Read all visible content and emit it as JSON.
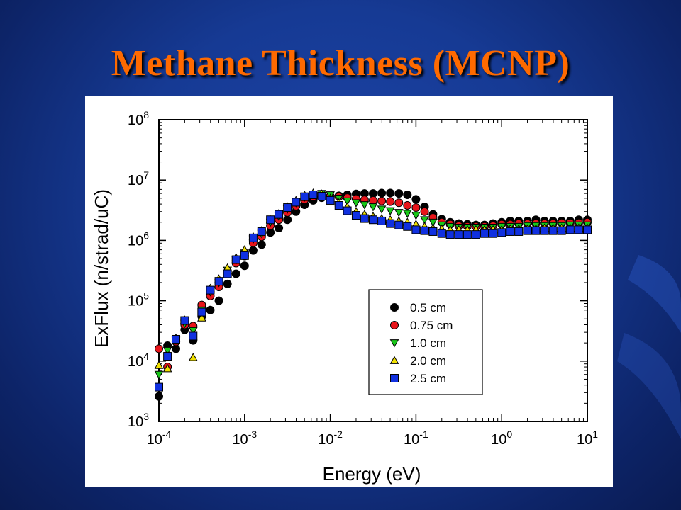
{
  "slide": {
    "title": "Methane Thickness (MCNP)"
  },
  "colors": {
    "title": "#ff6a00",
    "background": "#163a94"
  },
  "chart_data": {
    "type": "scatter",
    "title": "",
    "xlabel": "Energy (eV)",
    "ylabel": "ExFlux (n/strad/uC)",
    "x_scale": "log",
    "y_scale": "log",
    "xlim": [
      0.0001,
      10
    ],
    "ylim": [
      1000,
      100000000
    ],
    "grid": false,
    "legend_position": "lower-right",
    "x_ticks": [
      {
        "value": 0.0001,
        "base": "10",
        "exp": "-4"
      },
      {
        "value": 0.001,
        "base": "10",
        "exp": "-3"
      },
      {
        "value": 0.01,
        "base": "10",
        "exp": "-2"
      },
      {
        "value": 0.1,
        "base": "10",
        "exp": "-1"
      },
      {
        "value": 1,
        "base": "10",
        "exp": "0"
      },
      {
        "value": 10,
        "base": "10",
        "exp": "1"
      }
    ],
    "y_ticks": [
      {
        "value": 1000,
        "base": "10",
        "exp": "3"
      },
      {
        "value": 10000,
        "base": "10",
        "exp": "4"
      },
      {
        "value": 100000,
        "base": "10",
        "exp": "5"
      },
      {
        "value": 1000000,
        "base": "10",
        "exp": "6"
      },
      {
        "value": 10000000,
        "base": "10",
        "exp": "7"
      },
      {
        "value": 100000000,
        "base": "10",
        "exp": "8"
      }
    ],
    "x": [
      0.0001,
      0.000126,
      0.000158,
      0.0002,
      0.000251,
      0.000316,
      0.000398,
      0.000501,
      0.000631,
      0.000794,
      0.001,
      0.00126,
      0.00158,
      0.002,
      0.00251,
      0.00316,
      0.00398,
      0.00501,
      0.00631,
      0.00794,
      0.01,
      0.0126,
      0.0158,
      0.02,
      0.0251,
      0.0316,
      0.0398,
      0.0501,
      0.0631,
      0.0794,
      0.1,
      0.126,
      0.158,
      0.2,
      0.251,
      0.316,
      0.398,
      0.501,
      0.631,
      0.794,
      1,
      1.26,
      1.58,
      2,
      2.51,
      3.16,
      3.98,
      5.01,
      6.31,
      7.94,
      10
    ],
    "series": [
      {
        "name": "0.5 cm",
        "marker": "circle",
        "color": "#000000",
        "values": [
          2600,
          18000,
          16000,
          33000,
          22000,
          55000,
          70000,
          100000,
          190000,
          280000,
          380000,
          680000,
          850000,
          1350000,
          1600000,
          2200000,
          3000000,
          3900000,
          4600000,
          5100000,
          5400000,
          5500000,
          5700000,
          5900000,
          6000000,
          6000000,
          6100000,
          6100000,
          6000000,
          5700000,
          4800000,
          3600000,
          2700000,
          2250000,
          2000000,
          1900000,
          1850000,
          1800000,
          1800000,
          1900000,
          2000000,
          2100000,
          2100000,
          2100000,
          2200000,
          2100000,
          2100000,
          2100000,
          2100000,
          2200000,
          2200000
        ]
      },
      {
        "name": "0.75 cm",
        "marker": "circle",
        "color": "#e8141a",
        "values": [
          16000,
          8000,
          21000,
          40000,
          38000,
          85000,
          120000,
          170000,
          280000,
          420000,
          550000,
          900000,
          1150000,
          1750000,
          2200000,
          2900000,
          3700000,
          4700000,
          5300000,
          5600000,
          5400000,
          5300000,
          5100000,
          4900000,
          4700000,
          4600000,
          4500000,
          4400000,
          4200000,
          3800000,
          3500000,
          3000000,
          2400000,
          2000000,
          1850000,
          1750000,
          1700000,
          1700000,
          1700000,
          1750000,
          1850000,
          1850000,
          1900000,
          1900000,
          1900000,
          1900000,
          1900000,
          1950000,
          1950000,
          1950000,
          2000000
        ]
      },
      {
        "name": "1.0 cm",
        "marker": "triangle-down",
        "color": "#18c818",
        "values": [
          6000,
          15000,
          22000,
          42000,
          32000,
          70000,
          140000,
          200000,
          320000,
          470000,
          620000,
          1050000,
          1300000,
          2000000,
          2500000,
          3300000,
          4200000,
          5200000,
          5800000,
          6000000,
          5700000,
          5000000,
          4500000,
          4200000,
          3900000,
          3600000,
          3300000,
          3100000,
          2900000,
          2800000,
          2600000,
          2200000,
          2000000,
          1800000,
          1700000,
          1650000,
          1650000,
          1650000,
          1650000,
          1650000,
          1700000,
          1700000,
          1700000,
          1750000,
          1750000,
          1750000,
          1750000,
          1750000,
          1800000,
          1800000,
          1800000
        ]
      },
      {
        "name": "2.0 cm",
        "marker": "triangle-up",
        "color": "#f0e000",
        "values": [
          8500,
          7500,
          24000,
          48000,
          11500,
          52000,
          160000,
          230000,
          350000,
          520000,
          700000,
          1150000,
          1450000,
          2200000,
          2800000,
          3600000,
          4600000,
          5600000,
          6100000,
          5900000,
          5000000,
          4200000,
          3600000,
          3000000,
          2700000,
          2500000,
          2300000,
          2200000,
          2100000,
          2000000,
          1850000,
          1700000,
          1600000,
          1550000,
          1500000,
          1500000,
          1500000,
          1500000,
          1500000,
          1500000,
          1500000,
          1550000,
          1550000,
          1550000,
          1550000,
          1600000,
          1600000,
          1600000,
          1600000,
          1600000,
          1600000
        ]
      },
      {
        "name": "2.5 cm",
        "marker": "square",
        "color": "#1030e0",
        "values": [
          3700,
          12000,
          23000,
          47000,
          26000,
          65000,
          150000,
          210000,
          280000,
          480000,
          560000,
          1100000,
          1400000,
          2200000,
          2700000,
          3500000,
          4300000,
          5300000,
          5700000,
          5400000,
          4600000,
          3800000,
          3100000,
          2600000,
          2300000,
          2200000,
          2100000,
          1900000,
          1800000,
          1700000,
          1500000,
          1450000,
          1400000,
          1300000,
          1250000,
          1250000,
          1250000,
          1250000,
          1300000,
          1300000,
          1350000,
          1400000,
          1400000,
          1450000,
          1450000,
          1450000,
          1450000,
          1450000,
          1500000,
          1500000,
          1500000
        ]
      }
    ]
  }
}
